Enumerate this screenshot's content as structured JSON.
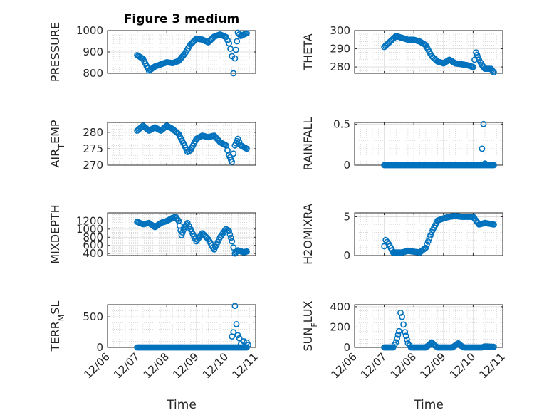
{
  "chart_data": [
    {
      "type": "scatter",
      "title": "Figure 3 medium",
      "ylabel": "PRESSURE",
      "ylim": [
        800,
        1000
      ],
      "yticks": [
        800,
        900,
        1000
      ],
      "xlim": [
        "12/06",
        "12/11"
      ],
      "xticks": [
        "12/06",
        "12/07",
        "12/08",
        "12/09",
        "12/10",
        "12/11"
      ],
      "show_xticklabels": false,
      "xlabel": "",
      "grid": true,
      "marker_color": "#0072BD",
      "keys": [
        [
          1.0,
          885
        ],
        [
          1.2,
          868
        ],
        [
          1.4,
          812
        ],
        [
          1.6,
          832
        ],
        [
          1.8,
          842
        ],
        [
          2.0,
          852
        ],
        [
          2.2,
          848
        ],
        [
          2.4,
          858
        ],
        [
          2.6,
          890
        ],
        [
          2.8,
          935
        ],
        [
          3.0,
          962
        ],
        [
          3.2,
          958
        ],
        [
          3.4,
          945
        ],
        [
          3.6,
          972
        ],
        [
          3.8,
          982
        ],
        [
          4.0,
          970
        ],
        [
          4.1,
          940
        ],
        [
          4.15,
          915
        ],
        [
          4.2,
          880
        ],
        [
          4.25,
          800
        ],
        [
          4.3,
          870
        ],
        [
          4.4,
          990
        ],
        [
          4.5,
          975
        ],
        [
          4.7,
          988
        ]
      ]
    },
    {
      "type": "scatter",
      "title": "",
      "ylabel": "THETA",
      "ylim": [
        276.5,
        300
      ],
      "yticks": [
        280,
        290,
        300
      ],
      "xlim": [
        "12/06",
        "12/11"
      ],
      "xticks": [
        "12/06",
        "12/07",
        "12/08",
        "12/09",
        "12/10",
        "12/11"
      ],
      "show_xticklabels": false,
      "xlabel": "",
      "grid": true,
      "marker_color": "#0072BD",
      "keys": [
        [
          1.0,
          291
        ],
        [
          1.2,
          294
        ],
        [
          1.4,
          297
        ],
        [
          1.6,
          296
        ],
        [
          1.8,
          295
        ],
        [
          2.0,
          295
        ],
        [
          2.2,
          294
        ],
        [
          2.4,
          292
        ],
        [
          2.6,
          286
        ],
        [
          2.8,
          283
        ],
        [
          3.0,
          282
        ],
        [
          3.2,
          284
        ],
        [
          3.4,
          282
        ],
        [
          3.6,
          281.5
        ],
        [
          3.8,
          281
        ],
        [
          4.0,
          280
        ],
        [
          4.1,
          288
        ],
        [
          4.2,
          284
        ],
        [
          4.3,
          281
        ],
        [
          4.4,
          279
        ],
        [
          4.6,
          279
        ],
        [
          4.7,
          277
        ]
      ]
    },
    {
      "type": "scatter",
      "title": "",
      "ylabel": "AIR_TEMP",
      "ylabel_main": "AIR",
      "ylabel_sub": "T",
      "ylabel_rest": "EMP",
      "ylim": [
        270,
        283
      ],
      "yticks": [
        270,
        275,
        280
      ],
      "xlim": [
        "12/06",
        "12/11"
      ],
      "xticks": [
        "12/06",
        "12/07",
        "12/08",
        "12/09",
        "12/10",
        "12/11"
      ],
      "show_xticklabels": false,
      "xlabel": "",
      "grid": true,
      "marker_color": "#0072BD",
      "keys": [
        [
          1.0,
          280.5
        ],
        [
          1.2,
          282
        ],
        [
          1.4,
          280.5
        ],
        [
          1.6,
          281.5
        ],
        [
          1.8,
          280.5
        ],
        [
          2.0,
          282
        ],
        [
          2.2,
          281
        ],
        [
          2.4,
          279.5
        ],
        [
          2.6,
          276
        ],
        [
          2.7,
          274
        ],
        [
          2.8,
          274.5
        ],
        [
          3.0,
          278
        ],
        [
          3.2,
          279
        ],
        [
          3.4,
          278.5
        ],
        [
          3.6,
          279
        ],
        [
          3.8,
          277
        ],
        [
          4.0,
          276
        ],
        [
          4.1,
          273
        ],
        [
          4.2,
          271
        ],
        [
          4.3,
          276
        ],
        [
          4.4,
          278
        ],
        [
          4.5,
          276
        ],
        [
          4.7,
          275
        ]
      ]
    },
    {
      "type": "scatter",
      "title": "",
      "ylabel": "RAINFALL",
      "ylim": [
        0,
        0.52
      ],
      "yticks": [
        0,
        0.5
      ],
      "ytick_labels": [
        "0",
        "0.5"
      ],
      "xlim": [
        "12/06",
        "12/11"
      ],
      "xticks": [
        "12/06",
        "12/07",
        "12/08",
        "12/09",
        "12/10",
        "12/11"
      ],
      "show_xticklabels": false,
      "xlabel": "",
      "grid": true,
      "marker_color": "#0072BD",
      "keys": [
        [
          1.0,
          0
        ],
        [
          4.7,
          0
        ]
      ],
      "extra_points": [
        [
          4.3,
          0.2
        ],
        [
          4.35,
          0.5
        ],
        [
          4.4,
          0.02
        ]
      ]
    },
    {
      "type": "scatter",
      "title": "",
      "ylabel": "MIXDEPTH",
      "ylim": [
        350,
        1400
      ],
      "yticks": [
        400,
        600,
        800,
        1000,
        1200
      ],
      "xlim": [
        "12/06",
        "12/11"
      ],
      "xticks": [
        "12/06",
        "12/07",
        "12/08",
        "12/09",
        "12/10",
        "12/11"
      ],
      "show_xticklabels": false,
      "xlabel": "",
      "grid": true,
      "marker_color": "#0072BD",
      "keys": [
        [
          1.0,
          1180
        ],
        [
          1.2,
          1120
        ],
        [
          1.4,
          1150
        ],
        [
          1.6,
          1050
        ],
        [
          1.8,
          1150
        ],
        [
          2.0,
          1200
        ],
        [
          2.2,
          1280
        ],
        [
          2.3,
          1300
        ],
        [
          2.4,
          1200
        ],
        [
          2.5,
          850
        ],
        [
          2.6,
          1050
        ],
        [
          2.7,
          1150
        ],
        [
          2.8,
          1000
        ],
        [
          3.0,
          700
        ],
        [
          3.2,
          900
        ],
        [
          3.4,
          750
        ],
        [
          3.6,
          500
        ],
        [
          3.8,
          800
        ],
        [
          4.0,
          1000
        ],
        [
          4.1,
          950
        ],
        [
          4.2,
          700
        ],
        [
          4.3,
          400
        ],
        [
          4.4,
          480
        ],
        [
          4.6,
          430
        ],
        [
          4.7,
          450
        ]
      ]
    },
    {
      "type": "scatter",
      "title": "",
      "ylabel": "H2OMIXRA",
      "ylim": [
        0,
        5.5
      ],
      "yticks": [
        0,
        5
      ],
      "xlim": [
        "12/06",
        "12/11"
      ],
      "xticks": [
        "12/06",
        "12/07",
        "12/08",
        "12/09",
        "12/10",
        "12/11"
      ],
      "show_xticklabels": false,
      "xlabel": "",
      "grid": true,
      "marker_color": "#0072BD",
      "keys": [
        [
          1.0,
          1.2
        ],
        [
          1.05,
          2
        ],
        [
          1.15,
          1.5
        ],
        [
          1.3,
          0.4
        ],
        [
          1.6,
          0.4
        ],
        [
          1.8,
          0.6
        ],
        [
          2.0,
          0.5
        ],
        [
          2.2,
          0.4
        ],
        [
          2.4,
          1
        ],
        [
          2.6,
          3
        ],
        [
          2.8,
          4.5
        ],
        [
          3.0,
          4.8
        ],
        [
          3.2,
          5
        ],
        [
          3.4,
          5.1
        ],
        [
          3.6,
          5
        ],
        [
          3.8,
          5
        ],
        [
          4.0,
          5
        ],
        [
          4.1,
          4.5
        ],
        [
          4.2,
          4
        ],
        [
          4.4,
          4.2
        ],
        [
          4.7,
          4
        ]
      ]
    },
    {
      "type": "scatter",
      "title": "",
      "ylabel": "TERR_MSL",
      "ylabel_main": "TERR",
      "ylabel_sub": "M",
      "ylabel_rest": "SL",
      "ylim": [
        0,
        700
      ],
      "yticks": [
        0,
        500
      ],
      "xlim": [
        "12/06",
        "12/11"
      ],
      "xticks": [
        "12/06",
        "12/07",
        "12/08",
        "12/09",
        "12/10",
        "12/11"
      ],
      "show_xticklabels": true,
      "xlabel": "Time",
      "grid": true,
      "marker_color": "#0072BD",
      "keys": [
        [
          1.0,
          0
        ],
        [
          4.7,
          0
        ]
      ],
      "extra_points": [
        [
          4.2,
          180
        ],
        [
          4.25,
          250
        ],
        [
          4.3,
          680
        ],
        [
          4.35,
          380
        ],
        [
          4.4,
          200
        ],
        [
          4.45,
          150
        ],
        [
          4.5,
          50
        ],
        [
          4.6,
          100
        ],
        [
          4.7,
          80
        ],
        [
          4.75,
          40
        ]
      ]
    },
    {
      "type": "scatter",
      "title": "",
      "ylabel": "SUN_FLUX",
      "ylabel_main": "SUN",
      "ylabel_sub": "F",
      "ylabel_rest": "LUX",
      "ylim": [
        0,
        420
      ],
      "yticks": [
        0,
        200,
        400
      ],
      "xlim": [
        "12/06",
        "12/11"
      ],
      "xticks": [
        "12/06",
        "12/07",
        "12/08",
        "12/09",
        "12/10",
        "12/11"
      ],
      "show_xticklabels": true,
      "xlabel": "Time",
      "grid": true,
      "marker_color": "#0072BD",
      "keys": [
        [
          1.0,
          0
        ],
        [
          1.3,
          0
        ],
        [
          1.4,
          50
        ],
        [
          1.5,
          160
        ],
        [
          1.55,
          340
        ],
        [
          1.6,
          300
        ],
        [
          1.7,
          150
        ],
        [
          1.8,
          40
        ],
        [
          1.9,
          0
        ],
        [
          2.4,
          0
        ],
        [
          2.5,
          20
        ],
        [
          2.6,
          50
        ],
        [
          2.7,
          20
        ],
        [
          2.8,
          0
        ],
        [
          3.3,
          0
        ],
        [
          3.4,
          20
        ],
        [
          3.5,
          40
        ],
        [
          3.6,
          15
        ],
        [
          3.7,
          0
        ],
        [
          4.3,
          0
        ],
        [
          4.4,
          10
        ],
        [
          4.7,
          5
        ]
      ]
    }
  ]
}
